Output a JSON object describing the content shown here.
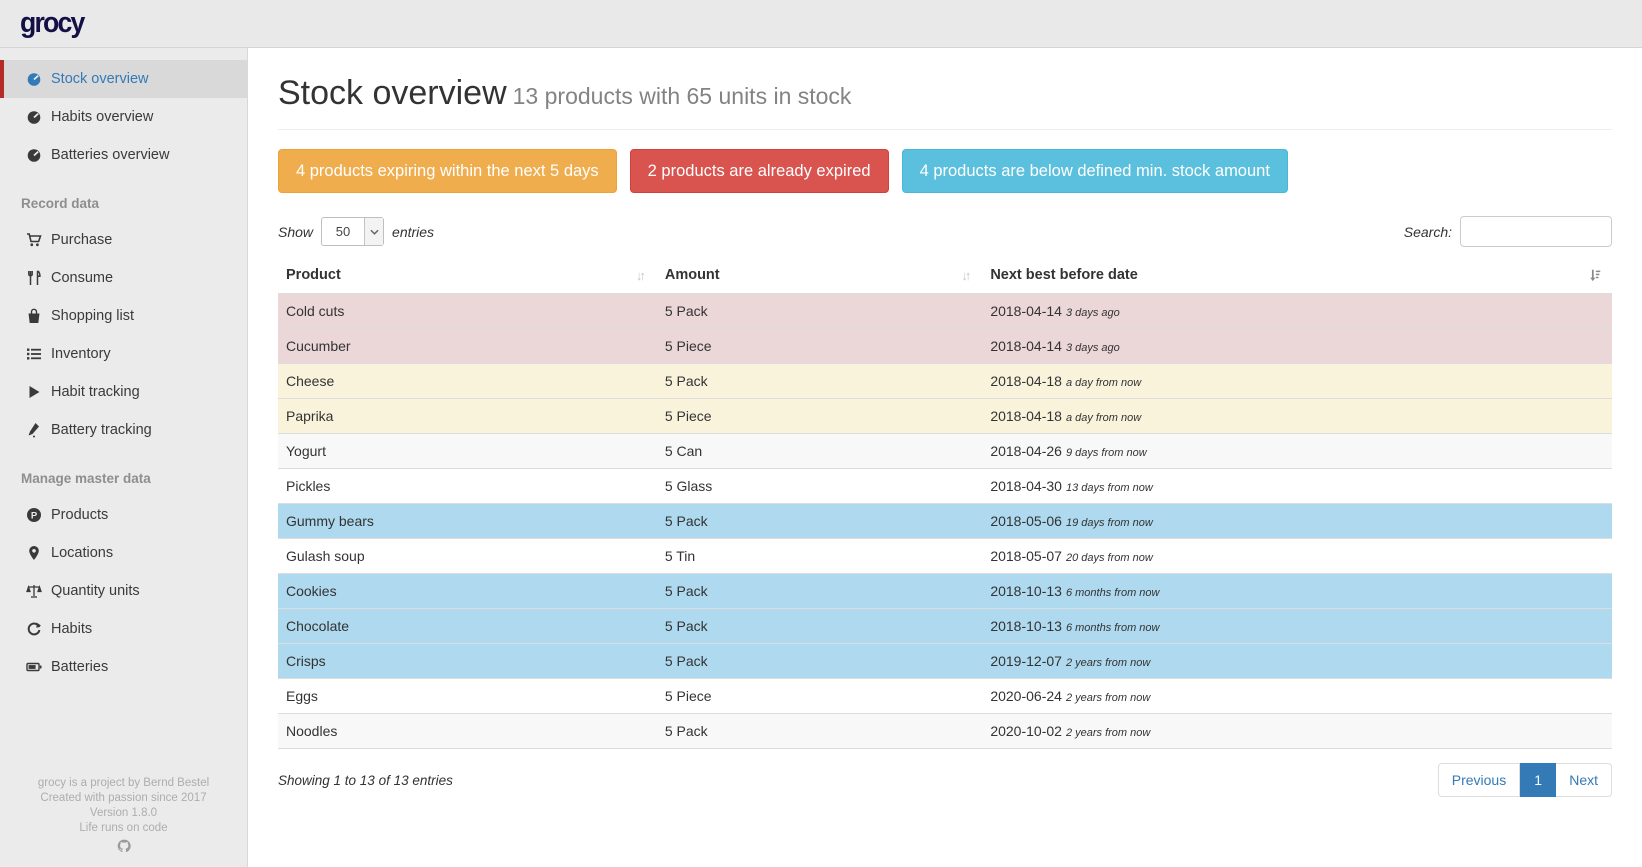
{
  "app": {
    "logo": "grocy"
  },
  "sidebar": {
    "items_top": [
      {
        "label": "Stock overview",
        "icon": "gauge-icon",
        "active": true
      },
      {
        "label": "Habits overview",
        "icon": "gauge-icon",
        "active": false
      },
      {
        "label": "Batteries overview",
        "icon": "gauge-icon",
        "active": false
      }
    ],
    "section_record": "Record data",
    "items_record": [
      {
        "label": "Purchase",
        "icon": "cart-icon"
      },
      {
        "label": "Consume",
        "icon": "utensils-icon"
      },
      {
        "label": "Shopping list",
        "icon": "bag-icon"
      },
      {
        "label": "Inventory",
        "icon": "list-icon"
      },
      {
        "label": "Habit tracking",
        "icon": "play-icon"
      },
      {
        "label": "Battery tracking",
        "icon": "pen-icon"
      }
    ],
    "section_master": "Manage master data",
    "items_master": [
      {
        "label": "Products",
        "icon": "product-circle-icon"
      },
      {
        "label": "Locations",
        "icon": "location-pin-icon"
      },
      {
        "label": "Quantity units",
        "icon": "scale-icon"
      },
      {
        "label": "Habits",
        "icon": "refresh-icon"
      },
      {
        "label": "Batteries",
        "icon": "battery-icon"
      }
    ],
    "footer": [
      "grocy is a project by Bernd Bestel",
      "Created with passion since 2017",
      "Version 1.8.0",
      "Life runs on code"
    ]
  },
  "header": {
    "title": "Stock overview",
    "subtitle": "13 products with 65 units in stock"
  },
  "alerts": [
    {
      "label": "4 products expiring within the next 5 days",
      "level": "warning",
      "color": "#f0ad4e"
    },
    {
      "label": "2 products are already expired",
      "level": "danger",
      "color": "#d9534f"
    },
    {
      "label": "4 products are below defined min. stock amount",
      "level": "info",
      "color": "#5bc0de"
    }
  ],
  "table_controls": {
    "show_label": "Show",
    "page_length": "50",
    "entries_label": "entries",
    "search_label": "Search:",
    "search_value": ""
  },
  "table": {
    "columns": [
      "Product",
      "Amount",
      "Next best before date"
    ],
    "rows": [
      {
        "product": "Cold cuts",
        "amount": "5 Pack",
        "date": "2018-04-14",
        "relative": "3 days ago",
        "status": "expired"
      },
      {
        "product": "Cucumber",
        "amount": "5 Piece",
        "date": "2018-04-14",
        "relative": "3 days ago",
        "status": "expired"
      },
      {
        "product": "Cheese",
        "amount": "5 Pack",
        "date": "2018-04-18",
        "relative": "a day from now",
        "status": "expiring"
      },
      {
        "product": "Paprika",
        "amount": "5 Piece",
        "date": "2018-04-18",
        "relative": "a day from now",
        "status": "expiring"
      },
      {
        "product": "Yogurt",
        "amount": "5 Can",
        "date": "2018-04-26",
        "relative": "9 days from now",
        "status": "stripe"
      },
      {
        "product": "Pickles",
        "amount": "5 Glass",
        "date": "2018-04-30",
        "relative": "13 days from now",
        "status": "plain"
      },
      {
        "product": "Gummy bears",
        "amount": "5 Pack",
        "date": "2018-05-06",
        "relative": "19 days from now",
        "status": "belowmin"
      },
      {
        "product": "Gulash soup",
        "amount": "5 Tin",
        "date": "2018-05-07",
        "relative": "20 days from now",
        "status": "plain"
      },
      {
        "product": "Cookies",
        "amount": "5 Pack",
        "date": "2018-10-13",
        "relative": "6 months from now",
        "status": "belowmin"
      },
      {
        "product": "Chocolate",
        "amount": "5 Pack",
        "date": "2018-10-13",
        "relative": "6 months from now",
        "status": "belowmin"
      },
      {
        "product": "Crisps",
        "amount": "5 Pack",
        "date": "2019-12-07",
        "relative": "2 years from now",
        "status": "belowmin"
      },
      {
        "product": "Eggs",
        "amount": "5 Piece",
        "date": "2020-06-24",
        "relative": "2 years from now",
        "status": "plain"
      },
      {
        "product": "Noodles",
        "amount": "5 Pack",
        "date": "2020-10-02",
        "relative": "2 years from now",
        "status": "stripe"
      }
    ]
  },
  "table_footer": {
    "info": "Showing 1 to 13 of 13 entries",
    "pagination": {
      "previous": "Previous",
      "page": "1",
      "next": "Next"
    }
  },
  "colors": {
    "accent_blue": "#337ab7",
    "active_border_red": "#b52b27",
    "row_expired": "#ebd6d8",
    "row_expiring": "#f9f3dc",
    "row_below_min": "#aed9ef",
    "logo_navy": "#131046"
  }
}
